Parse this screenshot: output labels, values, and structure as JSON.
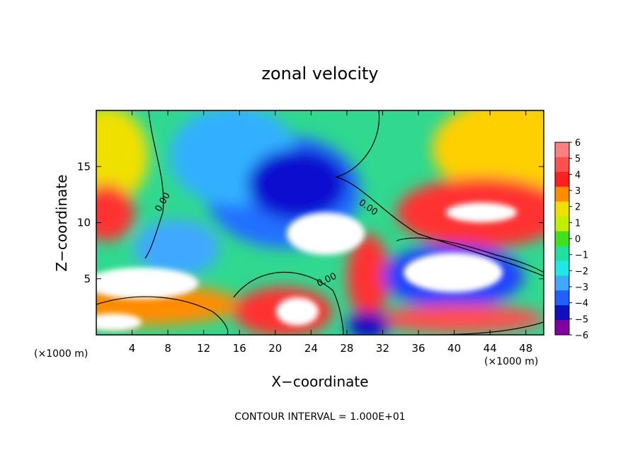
{
  "chart_data": {
    "type": "heatmap",
    "title": "zonal velocity",
    "xlabel": "X−coordinate",
    "ylabel": "Z−coordinate",
    "x_units_left": "(×1000 m)",
    "x_units_right": "(×1000 m)",
    "xlim": [
      0,
      50
    ],
    "ylim": [
      0,
      20
    ],
    "xticks": [
      4,
      8,
      12,
      16,
      20,
      24,
      28,
      32,
      36,
      40,
      44,
      48
    ],
    "xtick_labels": [
      "4",
      "8",
      "12",
      "16",
      "20",
      "24",
      "28",
      "32",
      "36",
      "40",
      "44",
      "48"
    ],
    "yticks": [
      5,
      10,
      15
    ],
    "ytick_labels": [
      "5",
      "10",
      "15"
    ],
    "colorbar": {
      "levels": [
        6,
        5,
        4,
        3,
        2,
        1,
        0,
        -1,
        -2,
        -3,
        -4,
        -5,
        -6
      ],
      "labels": [
        "6",
        "5",
        "4",
        "3",
        "2",
        "1",
        "0",
        "−1",
        "−2",
        "−3",
        "−4",
        "−5",
        "−6"
      ],
      "colors": [
        "#ff8080",
        "#ff5050",
        "#ff2020",
        "#ff8c00",
        "#f0e000",
        "#c0f000",
        "#40e020",
        "#20e0a0",
        "#20e8e8",
        "#40a8ff",
        "#2060ff",
        "#1010c0",
        "#8000a0"
      ]
    },
    "contour_labels": [
      "0.00",
      "0.00",
      "0.00"
    ],
    "footer": "CONTOUR INTERVAL = 1.000E+01"
  }
}
